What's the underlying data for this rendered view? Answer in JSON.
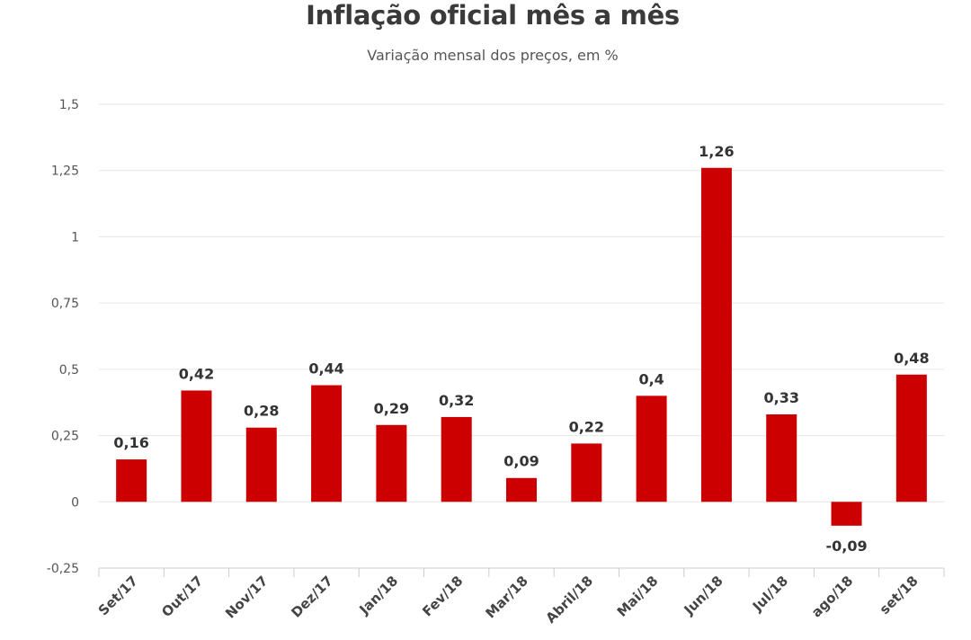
{
  "chart_data": {
    "type": "bar",
    "title": "Inflação oficial mês a mês",
    "subtitle": "Variação mensal dos preços, em %",
    "xlabel": "",
    "ylabel": "",
    "categories": [
      "Set/17",
      "Out/17",
      "Nov/17",
      "Dez/17",
      "Jan/18",
      "Fev/18",
      "Mar/18",
      "Abril/18",
      "Mai/18",
      "Jun/18",
      "Jul/18",
      "ago/18",
      "set/18"
    ],
    "values": [
      0.16,
      0.42,
      0.28,
      0.44,
      0.29,
      0.32,
      0.09,
      0.22,
      0.4,
      1.26,
      0.33,
      -0.09,
      0.48
    ],
    "value_labels": [
      "0,16",
      "0,42",
      "0,28",
      "0,44",
      "0,29",
      "0,32",
      "0,09",
      "0,22",
      "0,4",
      "1,26",
      "0,33",
      "-0,09",
      "0,48"
    ],
    "ylim": [
      -0.25,
      1.5
    ],
    "y_ticks": [
      -0.25,
      0,
      0.25,
      0.5,
      0.75,
      1,
      1.25,
      1.5
    ],
    "y_tick_labels": [
      "-0,25",
      "0",
      "0,25",
      "0,5",
      "0,75",
      "1",
      "1,25",
      "1,5"
    ],
    "grid": true,
    "legend": "none",
    "bar_color": "#cc0000",
    "grid_color": "#e6e6e6",
    "axis_color": "#cccccc"
  }
}
